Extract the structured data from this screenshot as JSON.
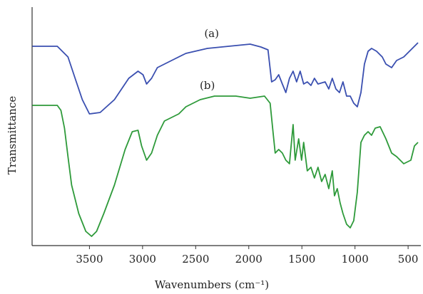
{
  "chart_data": {
    "type": "line",
    "xlabel": "Wavenumbers (cm⁻¹)",
    "ylabel": "Transmittance",
    "annotations": [
      {
        "text": "(a)",
        "x": 2350,
        "y": 293
      },
      {
        "text": "(b)",
        "x": 2390,
        "y": 220
      }
    ],
    "xlim": [
      4040,
      400
    ],
    "xticks": [
      3500,
      3000,
      2500,
      2000,
      1500,
      1000,
      500
    ],
    "ylim": [
      0,
      335
    ],
    "series": [
      {
        "name": "(a)",
        "color": "#3a4fb0",
        "x": [
          4038,
          3803,
          3702,
          3635,
          3567,
          3500,
          3399,
          3265,
          3130,
          3043,
          2996,
          2962,
          2915,
          2861,
          2727,
          2592,
          2390,
          2189,
          1987,
          1886,
          1819,
          1785,
          1751,
          1718,
          1684,
          1651,
          1617,
          1583,
          1550,
          1516,
          1483,
          1449,
          1415,
          1382,
          1348,
          1281,
          1247,
          1214,
          1180,
          1146,
          1113,
          1079,
          1045,
          1012,
          978,
          944,
          911,
          877,
          844,
          797,
          743,
          709,
          655,
          608,
          541,
          474,
          407
        ],
        "values": [
          280,
          280,
          265,
          235,
          205,
          185,
          187,
          205,
          235,
          245,
          240,
          227,
          235,
          250,
          260,
          270,
          277,
          280,
          283,
          279,
          275,
          230,
          233,
          240,
          227,
          215,
          235,
          245,
          230,
          245,
          227,
          230,
          225,
          235,
          227,
          230,
          220,
          235,
          220,
          215,
          230,
          210,
          210,
          200,
          195,
          215,
          255,
          273,
          277,
          273,
          265,
          255,
          250,
          260,
          265,
          275,
          285
        ]
      },
      {
        "name": "(b)",
        "color": "#2e9a3a",
        "x": [
          4038,
          3803,
          3769,
          3735,
          3702,
          3668,
          3601,
          3534,
          3480,
          3433,
          3365,
          3265,
          3164,
          3097,
          3043,
          3009,
          2962,
          2915,
          2861,
          2794,
          2659,
          2592,
          2458,
          2323,
          2121,
          1987,
          1852,
          1799,
          1772,
          1751,
          1718,
          1684,
          1651,
          1617,
          1583,
          1563,
          1530,
          1503,
          1483,
          1449,
          1415,
          1382,
          1348,
          1314,
          1281,
          1247,
          1214,
          1193,
          1167,
          1140,
          1113,
          1079,
          1045,
          1012,
          978,
          944,
          911,
          877,
          844,
          810,
          763,
          709,
          655,
          608,
          541,
          474,
          440,
          407
        ],
        "values": [
          197,
          197,
          190,
          165,
          125,
          85,
          45,
          20,
          13,
          20,
          45,
          85,
          135,
          160,
          162,
          140,
          120,
          130,
          155,
          175,
          185,
          195,
          205,
          210,
          210,
          207,
          210,
          200,
          160,
          130,
          135,
          130,
          120,
          115,
          170,
          120,
          150,
          120,
          145,
          105,
          110,
          95,
          110,
          90,
          100,
          80,
          105,
          70,
          80,
          60,
          45,
          30,
          25,
          35,
          75,
          145,
          155,
          160,
          155,
          165,
          167,
          150,
          130,
          125,
          115,
          120,
          140,
          145
        ]
      }
    ]
  }
}
